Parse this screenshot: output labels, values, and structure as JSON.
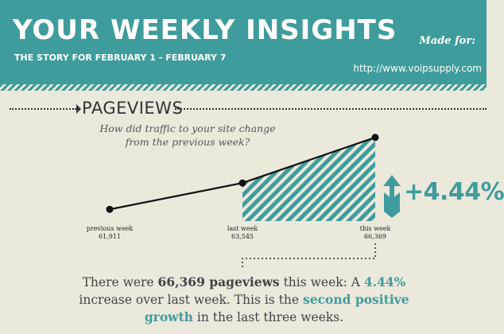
{
  "header": {
    "title": "YOUR WEEKLY INSIGHTS",
    "subtitle": "THE STORY FOR FEBRUARY 1 - FEBRUARY 7",
    "made_for": "Made for:",
    "url": "http://www.voipsupply.com",
    "accent_color": "#3f9c9c"
  },
  "section": {
    "title": "PAGEVIEWS",
    "question": "How did traffic to your site change from the previous week?"
  },
  "chart_data": {
    "type": "line",
    "categories": [
      "previous week",
      "last week",
      "this week"
    ],
    "values": [
      61911,
      63545,
      66369
    ],
    "value_labels": [
      "61,911",
      "63,545",
      "66,369"
    ],
    "highlight": "area between last week and this week (striped)",
    "change_label": "+4.44%",
    "change_direction": "up"
  },
  "summary": {
    "p1": "There were ",
    "views": "66,369 pageviews",
    "p2": " this week: A ",
    "pct": "4.44%",
    "p3": " increase over last week. This is the ",
    "growth": "second positive growth",
    "p4": " in the last three weeks."
  }
}
